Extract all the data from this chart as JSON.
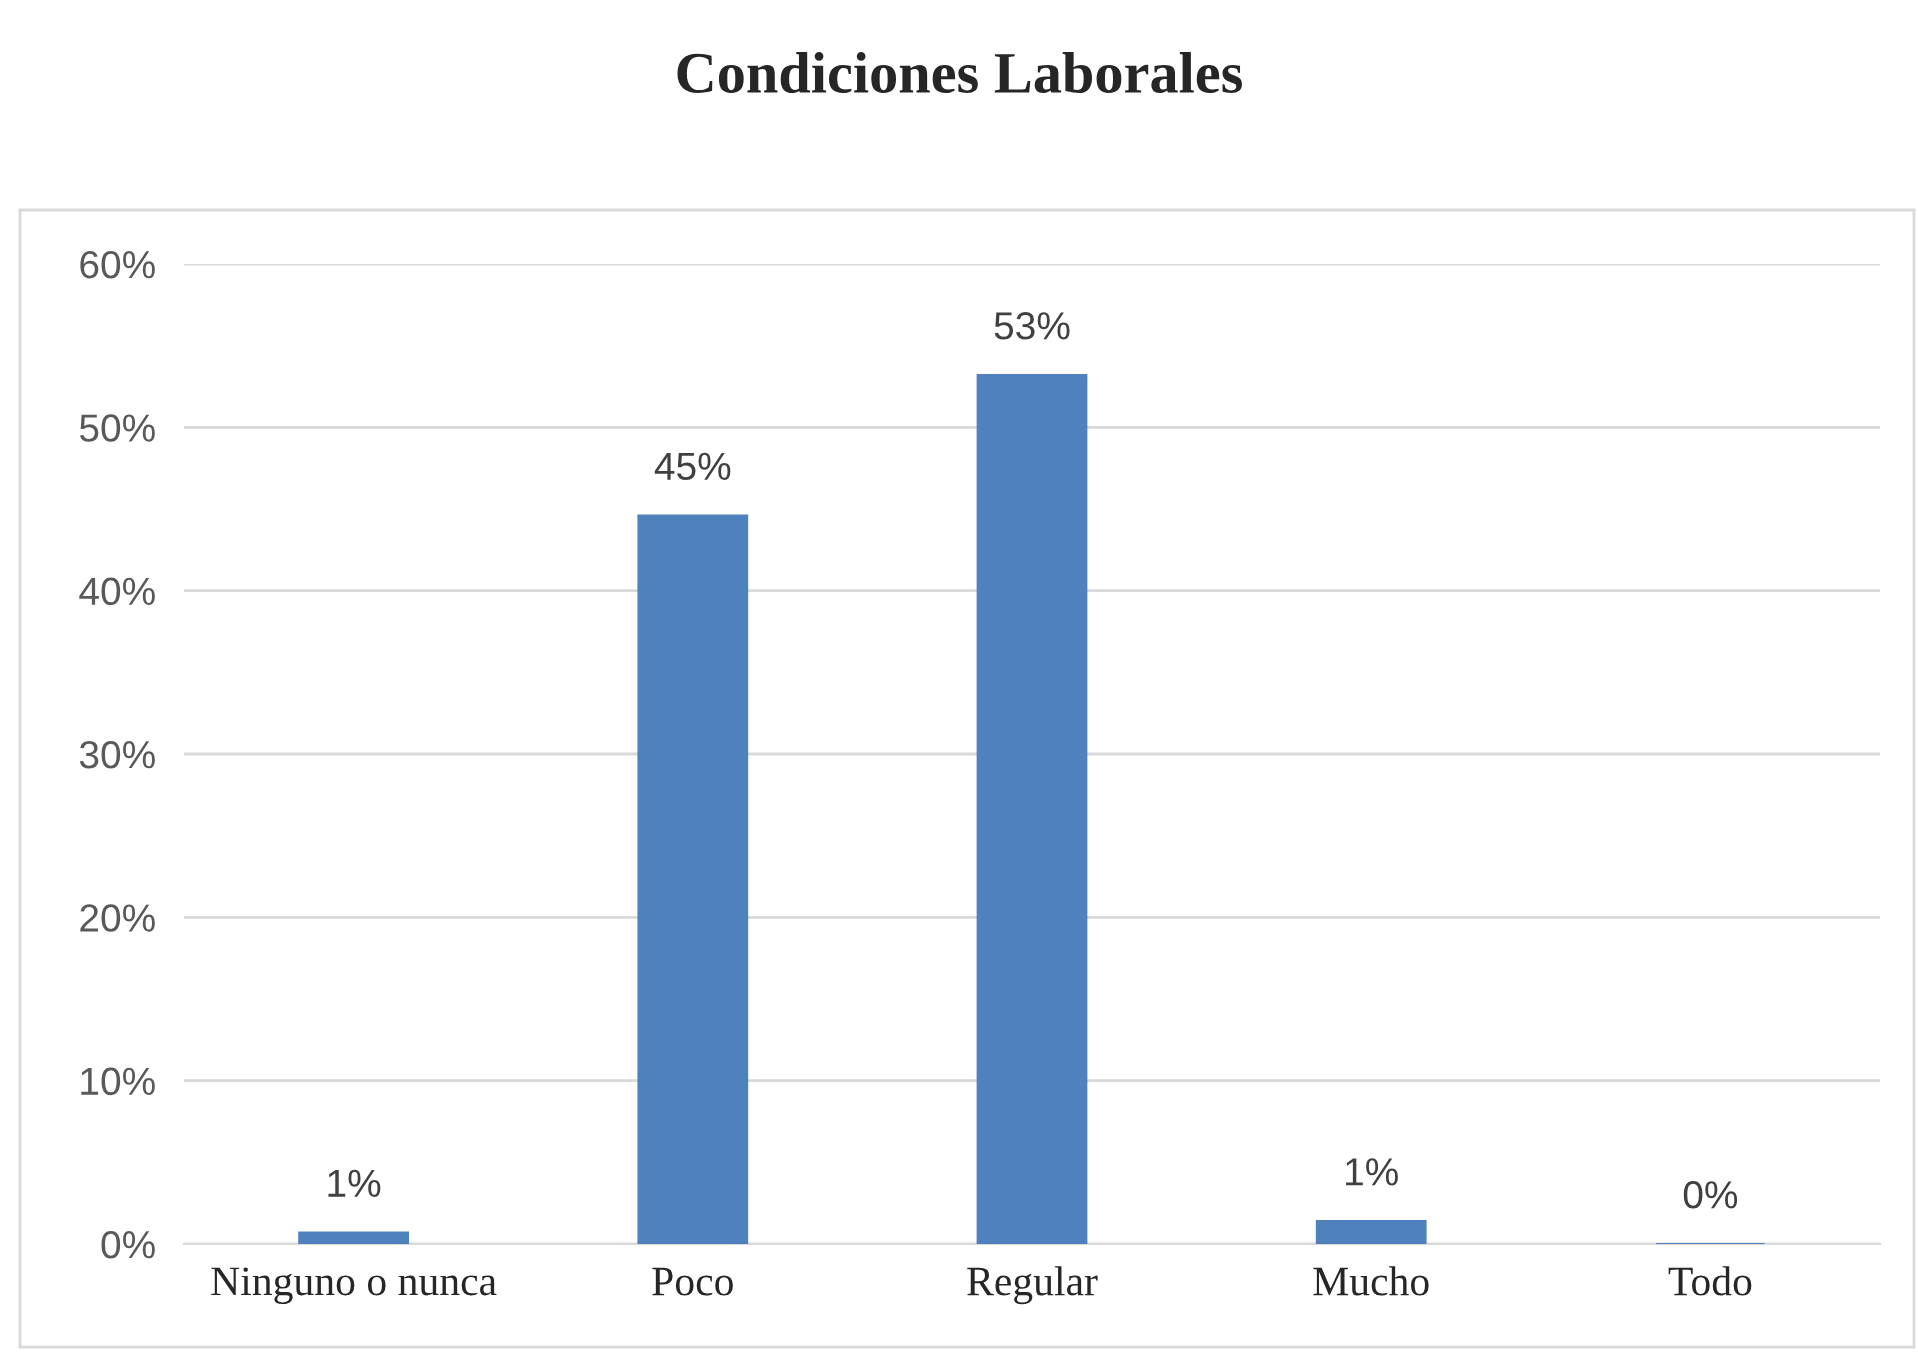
{
  "chart_data": {
    "type": "bar",
    "title": "Condiciones Laborales",
    "categories": [
      "Ninguno o nunca",
      "Poco",
      "Regular",
      "Mucho",
      "Todo"
    ],
    "values": [
      0.7,
      44.6,
      53.2,
      1.4,
      0
    ],
    "value_labels": [
      "1%",
      "45%",
      "53%",
      "1%",
      "0%"
    ],
    "color": "#4f81bd",
    "ylim": [
      0,
      60
    ],
    "yticks": [
      {
        "value": 0,
        "label": "0%"
      },
      {
        "value": 10,
        "label": "10%"
      },
      {
        "value": 20,
        "label": "20%"
      },
      {
        "value": 30,
        "label": "30%"
      },
      {
        "value": 40,
        "label": "40%"
      },
      {
        "value": 50,
        "label": "50%"
      },
      {
        "value": 60,
        "label": "60%"
      }
    ],
    "grid": "y",
    "legend": false
  }
}
